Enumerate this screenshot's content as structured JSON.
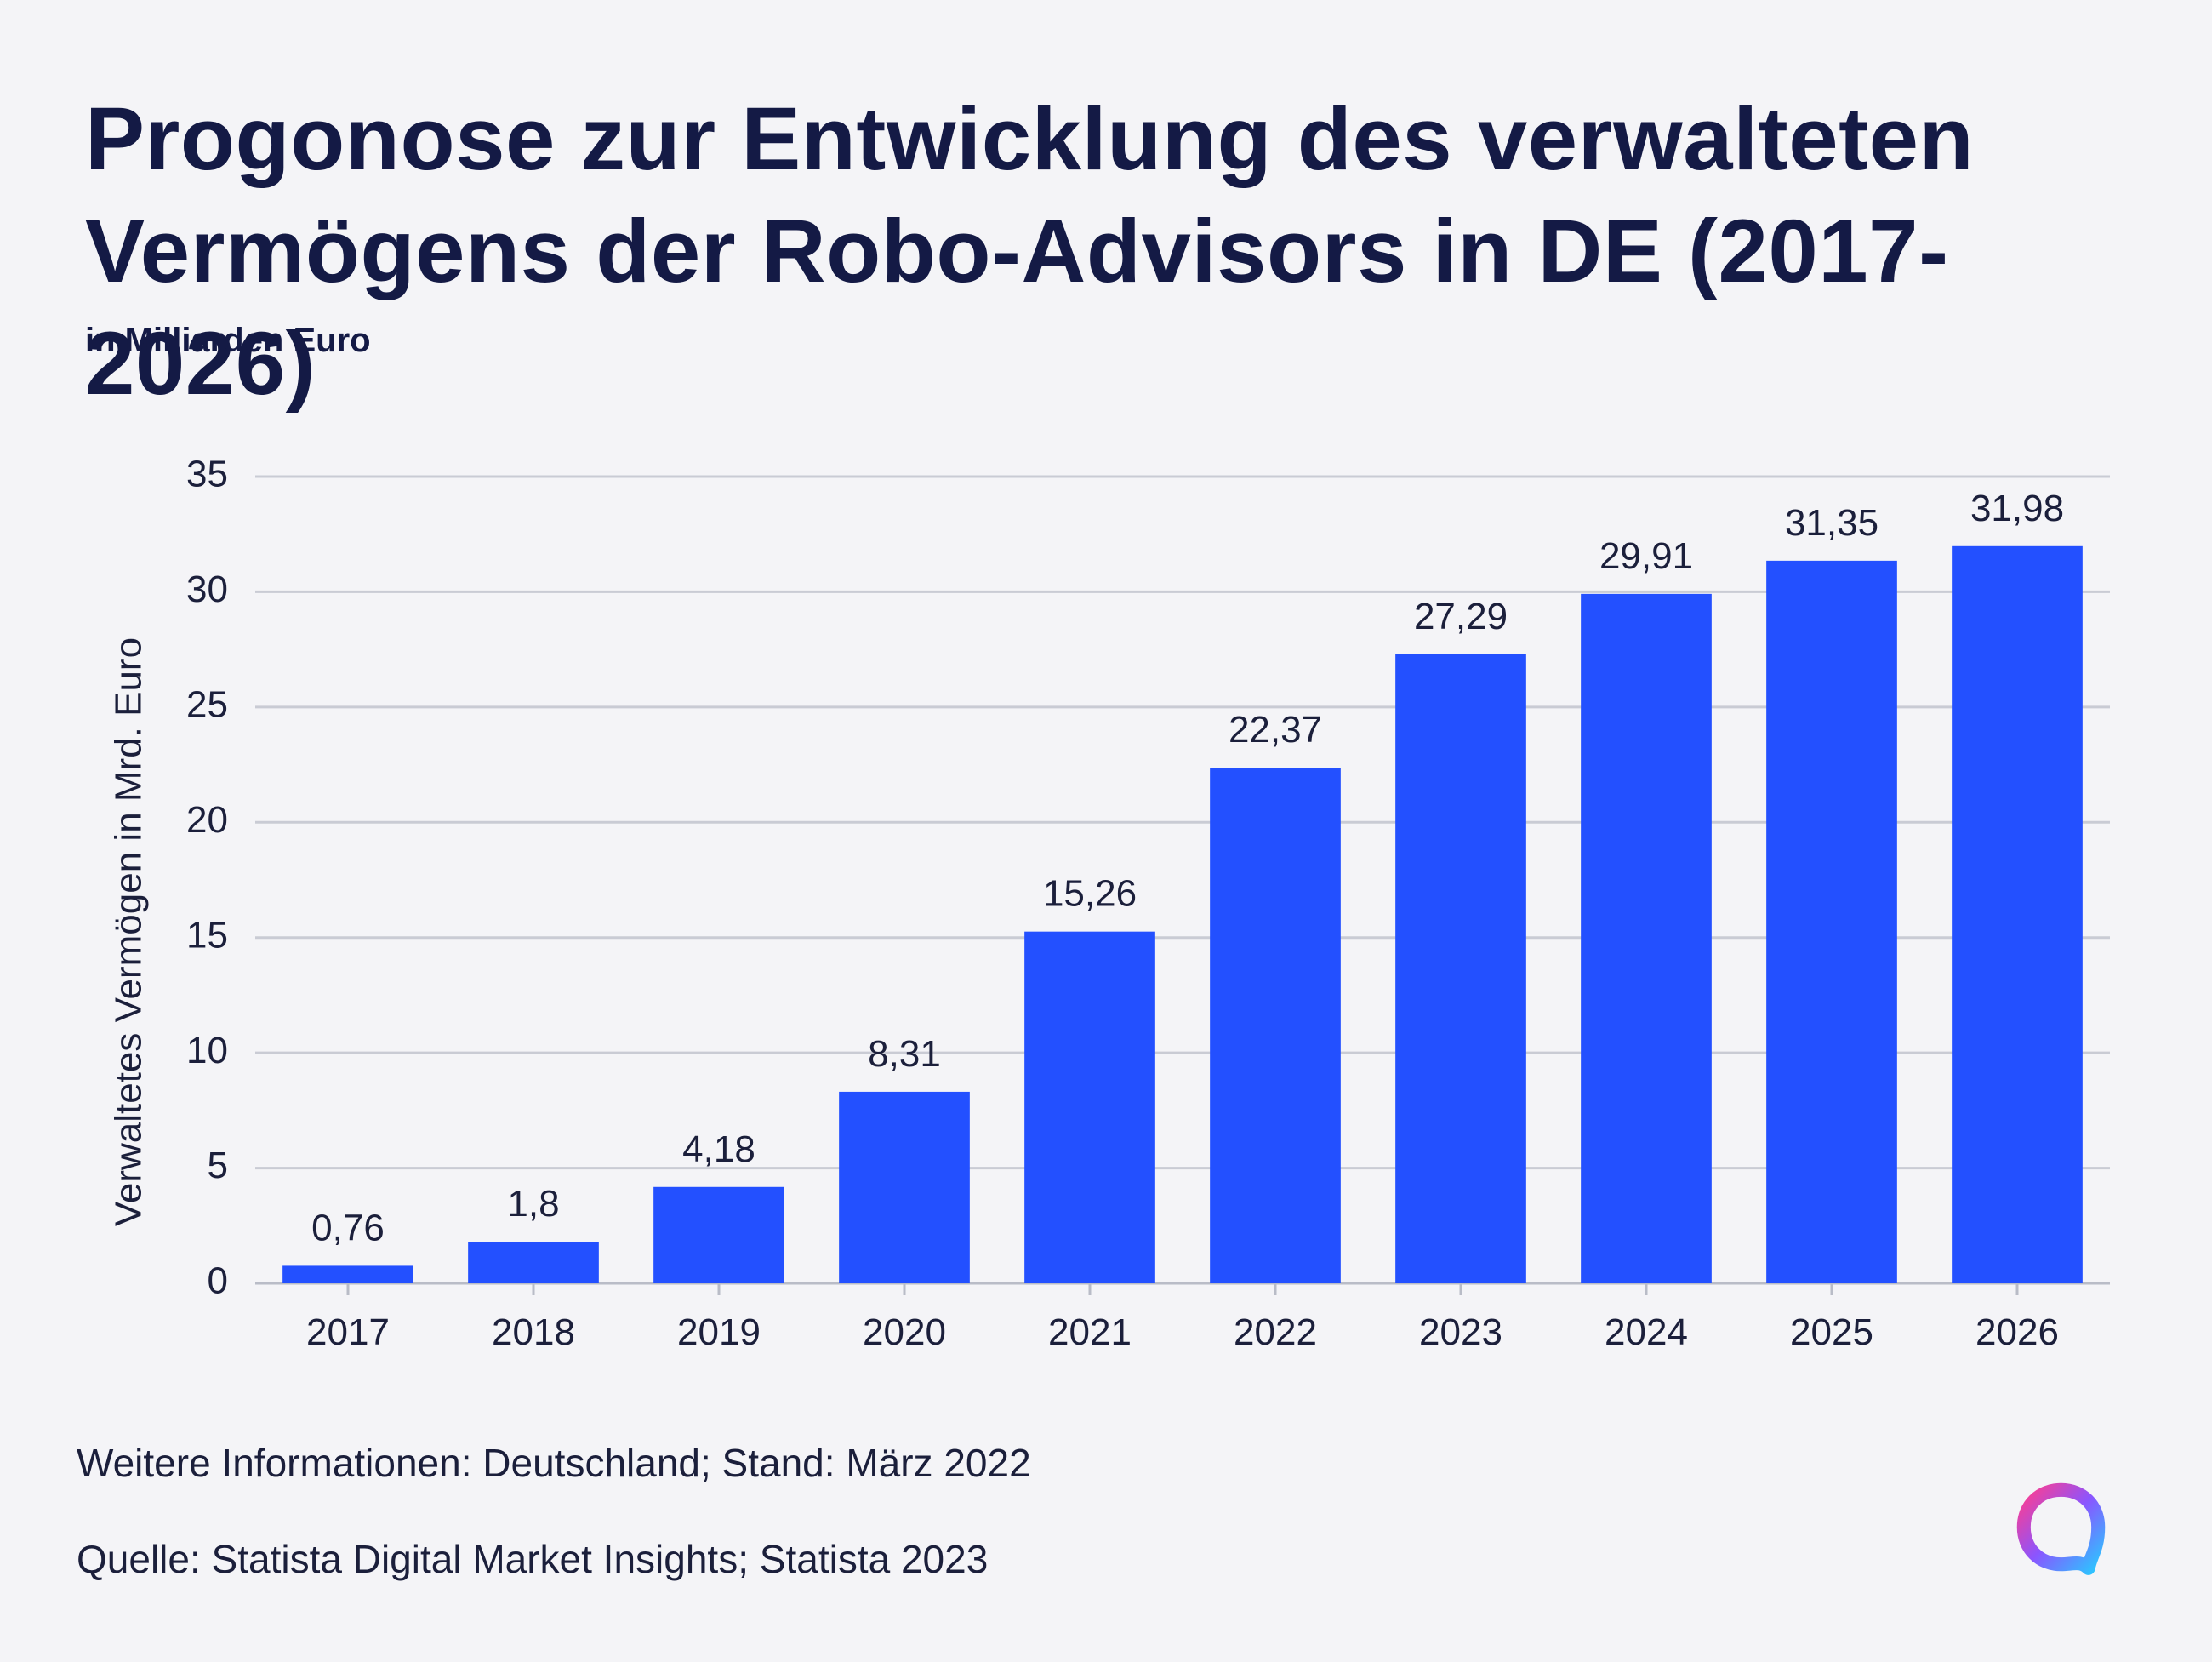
{
  "chart_data": {
    "type": "bar",
    "title_lines": [
      "Progonose zur Entwicklung des verwalteten",
      "Vermögens der Robo-Advisors in DE (2017-2026)"
    ],
    "subtitle": "in Milliarden Euro",
    "xlabel": "",
    "ylabel": "Verwaltetes Vermögen in Mrd. Euro",
    "categories": [
      "2017",
      "2018",
      "2019",
      "2020",
      "2021",
      "2022",
      "2023",
      "2024",
      "2025",
      "2026"
    ],
    "values": [
      0.76,
      1.8,
      4.18,
      8.31,
      15.26,
      22.37,
      27.29,
      29.91,
      31.35,
      31.98
    ],
    "value_labels": [
      "0,76",
      "1,8",
      "4,18",
      "8,31",
      "15,26",
      "22,37",
      "27,29",
      "29,91",
      "31,35",
      "31,98"
    ],
    "ylim": [
      0,
      35
    ],
    "yticks": [
      0,
      5,
      10,
      15,
      20,
      25,
      30,
      35
    ],
    "grid": true,
    "legend": "none",
    "bar_color": "#2350ff",
    "grid_color": "#c9cbd4"
  },
  "footer": {
    "note": "Weitere Informationen: Deutschland; Stand: März 2022",
    "source": "Quelle: Statista Digital Market Insights; Statista 2023"
  },
  "logo": {
    "icon": "statista-logo-icon"
  }
}
